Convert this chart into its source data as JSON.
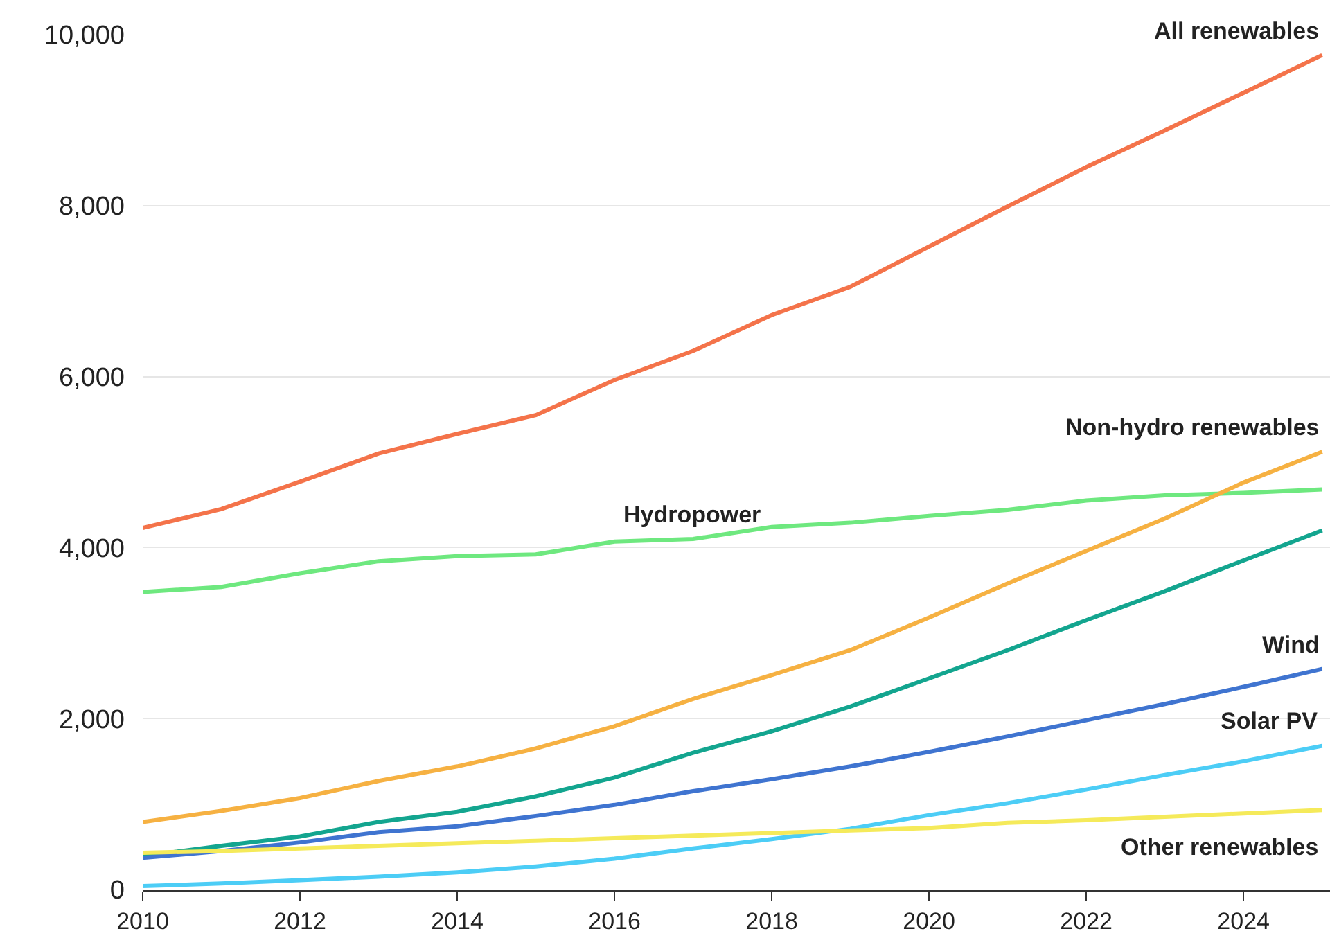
{
  "chart_data": {
    "type": "line",
    "x": [
      2010,
      2011,
      2012,
      2013,
      2014,
      2015,
      2016,
      2017,
      2018,
      2019,
      2020,
      2021,
      2022,
      2023,
      2024,
      2025
    ],
    "series": [
      {
        "name": "All renewables",
        "color": "#f4734a",
        "values": [
          4230,
          4450,
          4770,
          5100,
          5330,
          5550,
          5960,
          6300,
          6720,
          7050,
          7520,
          7990,
          8450,
          8880,
          9320,
          9760
        ]
      },
      {
        "name": "Hydropower",
        "color": "#6ee87f",
        "values": [
          3480,
          3540,
          3700,
          3840,
          3900,
          3920,
          4070,
          4100,
          4240,
          4290,
          4370,
          4440,
          4550,
          4610,
          4640,
          4680
        ]
      },
      {
        "name": "Non-hydro renewables",
        "color": "#f6b142",
        "values": [
          790,
          920,
          1070,
          1270,
          1440,
          1650,
          1910,
          2230,
          2510,
          2800,
          3180,
          3580,
          3960,
          4340,
          4760,
          5120
        ]
      },
      {
        "color": "#13a58f",
        "values": [
          390,
          510,
          620,
          790,
          910,
          1090,
          1310,
          1600,
          1850,
          2140,
          2470,
          2800,
          3150,
          3490,
          3850,
          4200
        ]
      },
      {
        "name": "Wind",
        "color": "#3f74d0",
        "values": [
          370,
          450,
          550,
          670,
          740,
          860,
          990,
          1150,
          1290,
          1440,
          1610,
          1790,
          1980,
          2170,
          2370,
          2580
        ]
      },
      {
        "name": "Solar PV",
        "color": "#4ccdf6",
        "values": [
          40,
          70,
          110,
          150,
          200,
          270,
          360,
          480,
          590,
          710,
          870,
          1010,
          1170,
          1340,
          1500,
          1680
        ]
      },
      {
        "name": "Other renewables",
        "color": "#f5ea5a",
        "values": [
          430,
          450,
          480,
          510,
          540,
          570,
          600,
          630,
          660,
          690,
          720,
          780,
          810,
          850,
          890,
          930
        ]
      }
    ],
    "xlim": [
      2010,
      2025.1
    ],
    "xticks": [
      2010,
      2012,
      2014,
      2016,
      2018,
      2020,
      2022,
      2024
    ],
    "ylim": [
      0,
      10000
    ],
    "yticks": [
      {
        "value": 0,
        "label": "0"
      },
      {
        "value": 2000,
        "label": "2,000"
      },
      {
        "value": 4000,
        "label": "4,000"
      },
      {
        "value": 6000,
        "label": "6,000"
      },
      {
        "value": 8000,
        "label": "8,000"
      },
      {
        "value": 10000,
        "label": "10,000"
      }
    ],
    "grid": "y",
    "legend": false,
    "marker": "none",
    "line_style": "solid"
  }
}
